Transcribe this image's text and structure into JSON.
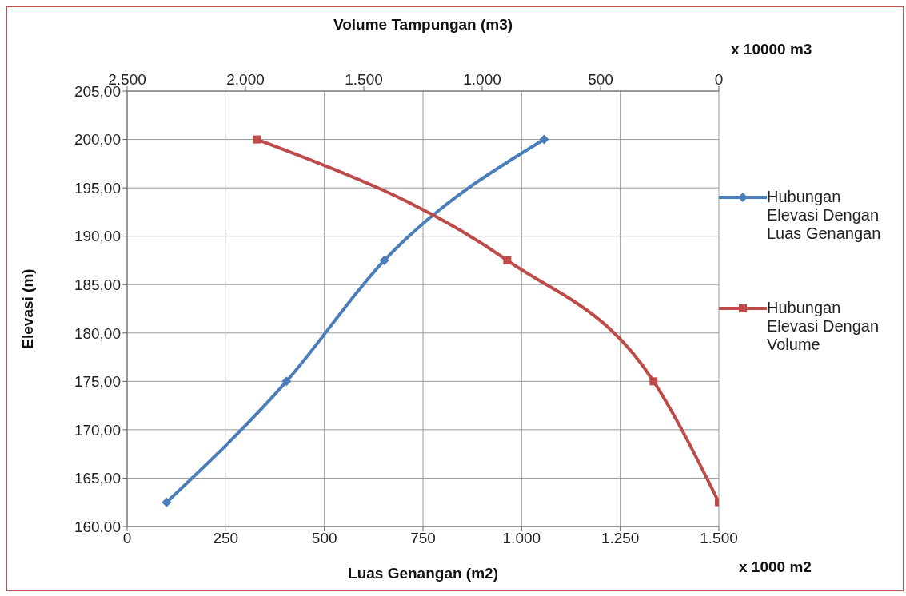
{
  "chart_data": {
    "type": "line",
    "xlabel": "Luas Genangan (m2)",
    "x2label": "Volume Tampungan (m3)",
    "ylabel": "Elevasi (m)",
    "xlim": [
      0,
      1500
    ],
    "xticks": [
      0,
      250,
      500,
      750,
      {
        "value": 1000,
        "label": "1.000"
      },
      {
        "value": 1250,
        "label": "1.250"
      },
      {
        "value": 1500,
        "label": "1.500"
      }
    ],
    "x2lim": [
      2500,
      0
    ],
    "x2ticks": [
      {
        "value": 2500,
        "label": "2.500"
      },
      {
        "value": 2000,
        "label": "2.000"
      },
      {
        "value": 1500,
        "label": "1.500"
      },
      {
        "value": 1000,
        "label": "1.000"
      },
      500,
      0
    ],
    "ylim": [
      160,
      205
    ],
    "yticks": [
      {
        "value": 160,
        "label": "160,00"
      },
      {
        "value": 165,
        "label": "165,00"
      },
      {
        "value": 170,
        "label": "170,00"
      },
      {
        "value": 175,
        "label": "175,00"
      },
      {
        "value": 180,
        "label": "180,00"
      },
      {
        "value": 185,
        "label": "185,00"
      },
      {
        "value": 190,
        "label": "190,00"
      },
      {
        "value": 195,
        "label": "195,00"
      },
      {
        "value": 200,
        "label": "200,00"
      },
      {
        "value": 205,
        "label": "205,00"
      }
    ],
    "grid": true,
    "legend": "right",
    "line_style": "solid",
    "annotations": [
      "x 10000 m3",
      "x 1000 m2"
    ],
    "series": [
      {
        "name": "Hubungan Elevasi Dengan Luas Genangan",
        "color": "#4a7ebb",
        "marker": "diamond",
        "x": [
          100,
          404,
          652,
          1057
        ],
        "values": [
          162.5,
          175,
          187.5,
          200
        ]
      },
      {
        "name": "Hubungan Elevasi Dengan Volume",
        "color": "#be4b48",
        "marker": "square",
        "axis": "x2",
        "x": [
          1951,
          894,
          276,
          0
        ],
        "values": [
          200,
          187.5,
          175,
          162.5
        ]
      }
    ]
  }
}
